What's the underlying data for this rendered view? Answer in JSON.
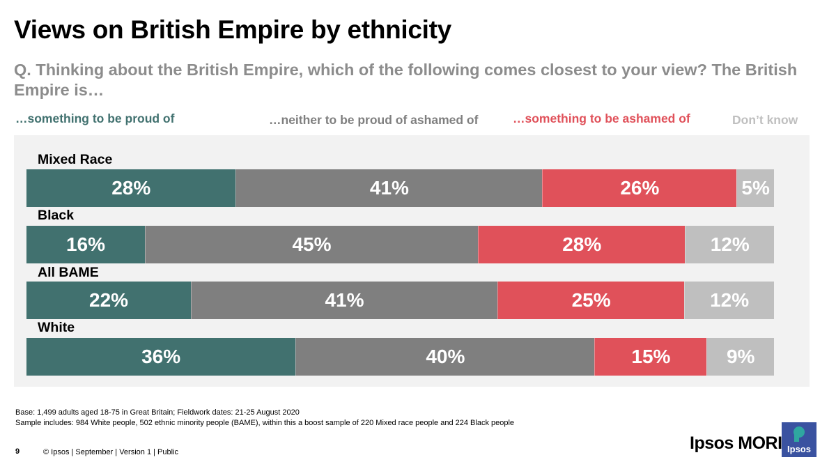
{
  "title": "Views on British Empire by ethnicity",
  "question": "Q. Thinking about the British Empire, which of the following comes closest to your view? The British Empire is…",
  "colors": {
    "proud": "#41716f",
    "neither": "#7f7f7f",
    "ashamed": "#e0515a",
    "dont_know": "#bfbfbf",
    "panel": "#f2f2f2"
  },
  "chart_data": {
    "type": "bar",
    "orientation": "horizontal",
    "stacked": true,
    "unit": "%",
    "categories": [
      "Mixed Race",
      "Black",
      "All BAME",
      "White"
    ],
    "series": [
      {
        "name": "…something to be proud of",
        "values": [
          28,
          16,
          22,
          36
        ]
      },
      {
        "name": "…neither to be proud of ashamed of",
        "values": [
          41,
          45,
          41,
          40
        ]
      },
      {
        "name": "…something to be ashamed of",
        "values": [
          26,
          28,
          25,
          15
        ]
      },
      {
        "name": "Don’t know",
        "values": [
          5,
          12,
          12,
          9
        ]
      }
    ],
    "legend": "top"
  },
  "footnotes": [
    "Base: 1,499 adults aged 18-75 in Great Britain; Fieldwork dates: 21-25 August 2020",
    "Sample includes: 984 White people,  502 ethnic minority people (BAME), within this a boost sample of 220 Mixed race people and 224 Black people"
  ],
  "page_number": "9",
  "footer": "© Ipsos | September | Version 1 | Public",
  "brand": "Ipsos MORI",
  "logo_text": "Ipsos"
}
